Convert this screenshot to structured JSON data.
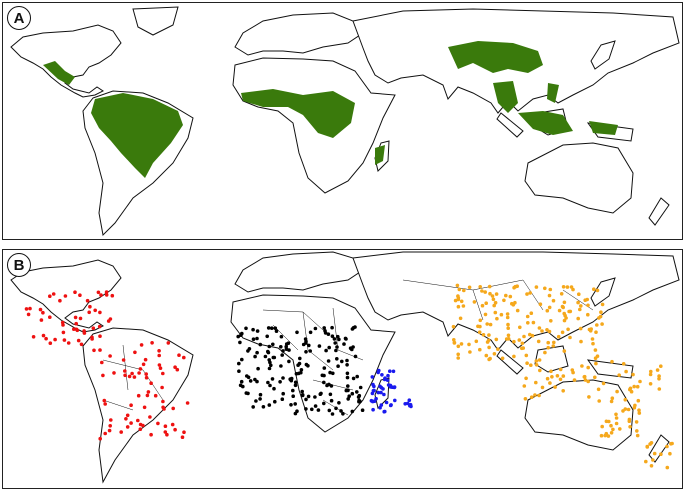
{
  "panels": [
    {
      "label": "A",
      "layer": "forest-cover"
    },
    {
      "label": "B",
      "layer": "occurrence-records"
    }
  ],
  "colors": {
    "forest": "#3a7a0c",
    "neotropics": "#ee1111",
    "africa": "#000000",
    "madagascar": "#1a1aee",
    "asia": "#f5a81c"
  }
}
